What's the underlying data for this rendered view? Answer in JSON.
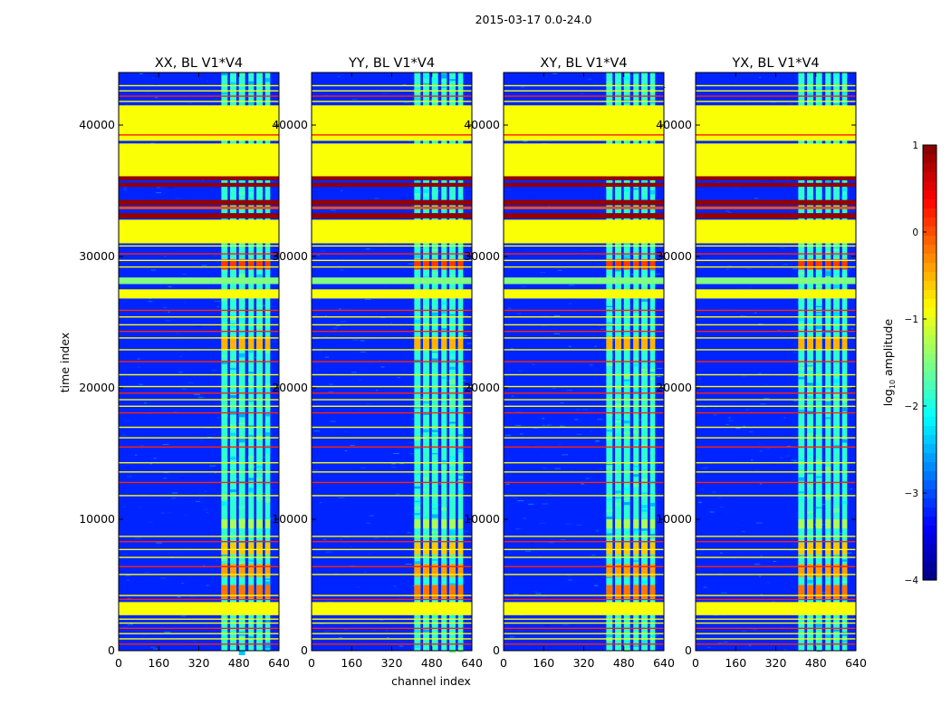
{
  "figure_title": "2015-03-17 0.0-24.0",
  "chart_data": {
    "type": "heatmap",
    "suptitle": "2015-03-17 0.0-24.0",
    "xlabel": "channel index",
    "ylabel": "time index",
    "xlim": [
      0,
      640
    ],
    "ylim": [
      0,
      44000
    ],
    "xticks": [
      0,
      160,
      320,
      480,
      640
    ],
    "yticks": [
      0,
      10000,
      20000,
      30000,
      40000
    ],
    "colorbar": {
      "label_main": "log",
      "label_sub": "10",
      "label_rest": " amplitude",
      "range": [
        -4,
        1
      ],
      "ticks": [
        1,
        0,
        -1,
        -2,
        -3,
        -4
      ],
      "colormap": "jet"
    },
    "panels": [
      {
        "title": "XX, BL V1*V4",
        "pol": "XX"
      },
      {
        "title": "YY, BL V1*V4",
        "pol": "YY"
      },
      {
        "title": "XY, BL V1*V4",
        "pol": "XY"
      },
      {
        "title": "YX, BL V1*V4",
        "pol": "YX"
      }
    ],
    "flagged_time_bands": [
      [
        2700,
        3700,
        -0.9
      ],
      [
        38800,
        41500,
        -0.9
      ],
      [
        36100,
        38600,
        -0.9
      ],
      [
        31000,
        32800,
        -0.9
      ],
      [
        26800,
        27500,
        -0.9
      ],
      [
        27900,
        28400,
        -1.5
      ],
      [
        35800,
        36100,
        0.9
      ],
      [
        35300,
        35600,
        0.9
      ],
      [
        33900,
        34300,
        0.9
      ],
      [
        32900,
        33300,
        0.9
      ],
      [
        39200,
        39300,
        0.2
      ],
      [
        33600,
        33800,
        0.0
      ]
    ],
    "flagged_time_lines": [
      500,
      900,
      1300,
      1700,
      2100,
      2400,
      3900,
      4200,
      5800,
      6400,
      7100,
      7700,
      8300,
      8700,
      11800,
      12800,
      13600,
      14300,
      15500,
      16200,
      17000,
      18100,
      18600,
      19100,
      19600,
      20100,
      21000,
      22000,
      22900,
      23800,
      24300,
      24800,
      25400,
      25900,
      29200,
      29700,
      30200,
      30800,
      41800,
      42200,
      42600,
      43000
    ],
    "active_channel_ranges": [
      [
        410,
        435
      ],
      [
        445,
        470
      ],
      [
        480,
        505
      ],
      [
        518,
        540
      ],
      [
        550,
        575
      ],
      [
        585,
        605
      ]
    ],
    "rfi_time_bands": [
      [
        4000,
        5000,
        -0.2
      ],
      [
        5600,
        6600,
        -0.4
      ],
      [
        7300,
        8200,
        -0.6
      ],
      [
        9300,
        10000,
        -1.3
      ],
      [
        22900,
        23900,
        -0.5
      ],
      [
        29000,
        29800,
        0.1
      ]
    ]
  }
}
